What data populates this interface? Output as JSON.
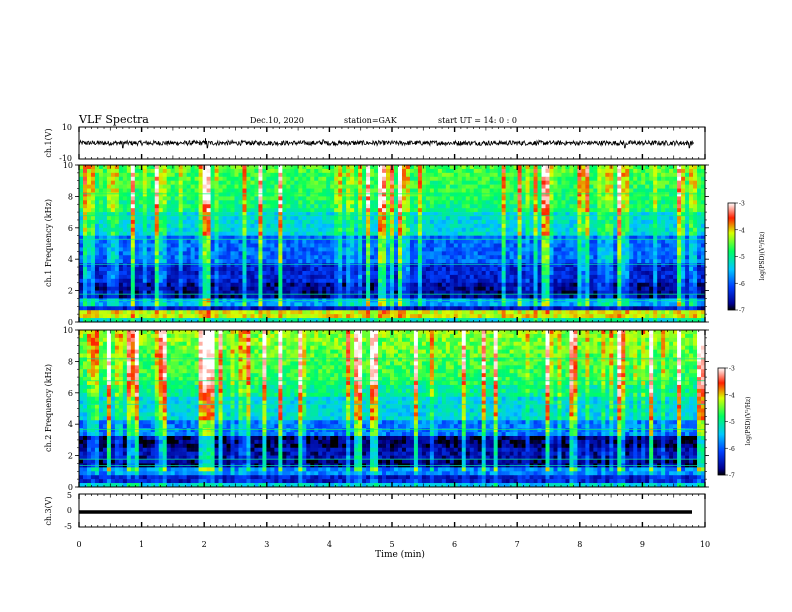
{
  "header": {
    "title": "VLF Spectra",
    "date": "Dec.10, 2020",
    "station": "station=GAK",
    "start": "start UT =  14: 0 : 0"
  },
  "chart_data": [
    {
      "type": "line",
      "panel": "ch1-waveform",
      "ylabel": "ch.1(V)",
      "ylim": [
        -10,
        10
      ],
      "ytick_labels": [
        "10",
        "-10"
      ],
      "baseline": 0,
      "amplitude_approx": 1.5,
      "spikes": [
        {
          "t": 0.7,
          "v": -3
        },
        {
          "t": 2.02,
          "v": 3
        },
        {
          "t": 2.05,
          "v": -3
        },
        {
          "t": 3.9,
          "v": 2
        },
        {
          "t": 8.72,
          "v": -3
        },
        {
          "t": 9.75,
          "v": -3
        }
      ]
    },
    {
      "type": "heatmap",
      "panel": "ch1-spectrogram",
      "ylabel": "ch.1 Frequency (kHz)",
      "ylim": [
        0,
        10
      ],
      "ytick_labels": [
        "0",
        "2",
        "4",
        "6",
        "8",
        "10"
      ],
      "xlim": [
        0,
        10
      ],
      "colorbar": {
        "label": "log(PSD)(V²/Hz)",
        "range": [
          -7,
          -3
        ],
        "tick_labels": [
          "-3",
          "-4",
          "-5",
          "-6",
          "-7"
        ]
      }
    },
    {
      "type": "heatmap",
      "panel": "ch2-spectrogram",
      "ylabel": "ch.2 Frequency (kHz)",
      "ylim": [
        0,
        10
      ],
      "ytick_labels": [
        "0",
        "2",
        "4",
        "6",
        "8",
        "10"
      ],
      "xlim": [
        0,
        10
      ],
      "colorbar": {
        "label": "log(PSD)(V²/Hz)",
        "range": [
          -7,
          -3
        ],
        "tick_labels": [
          "-3",
          "-4",
          "-5",
          "-6",
          "-7"
        ]
      }
    },
    {
      "type": "line",
      "panel": "ch3-waveform",
      "ylabel": "ch.3(V)",
      "ylim": [
        -5,
        5
      ],
      "ytick_labels": [
        "5",
        "0",
        "-5"
      ],
      "baseline": -1,
      "xlabel": "Time (min)",
      "xlim": [
        0,
        10
      ],
      "xtick_labels": [
        "0",
        "1",
        "2",
        "3",
        "4",
        "5",
        "6",
        "7",
        "8",
        "9",
        "10"
      ]
    }
  ]
}
